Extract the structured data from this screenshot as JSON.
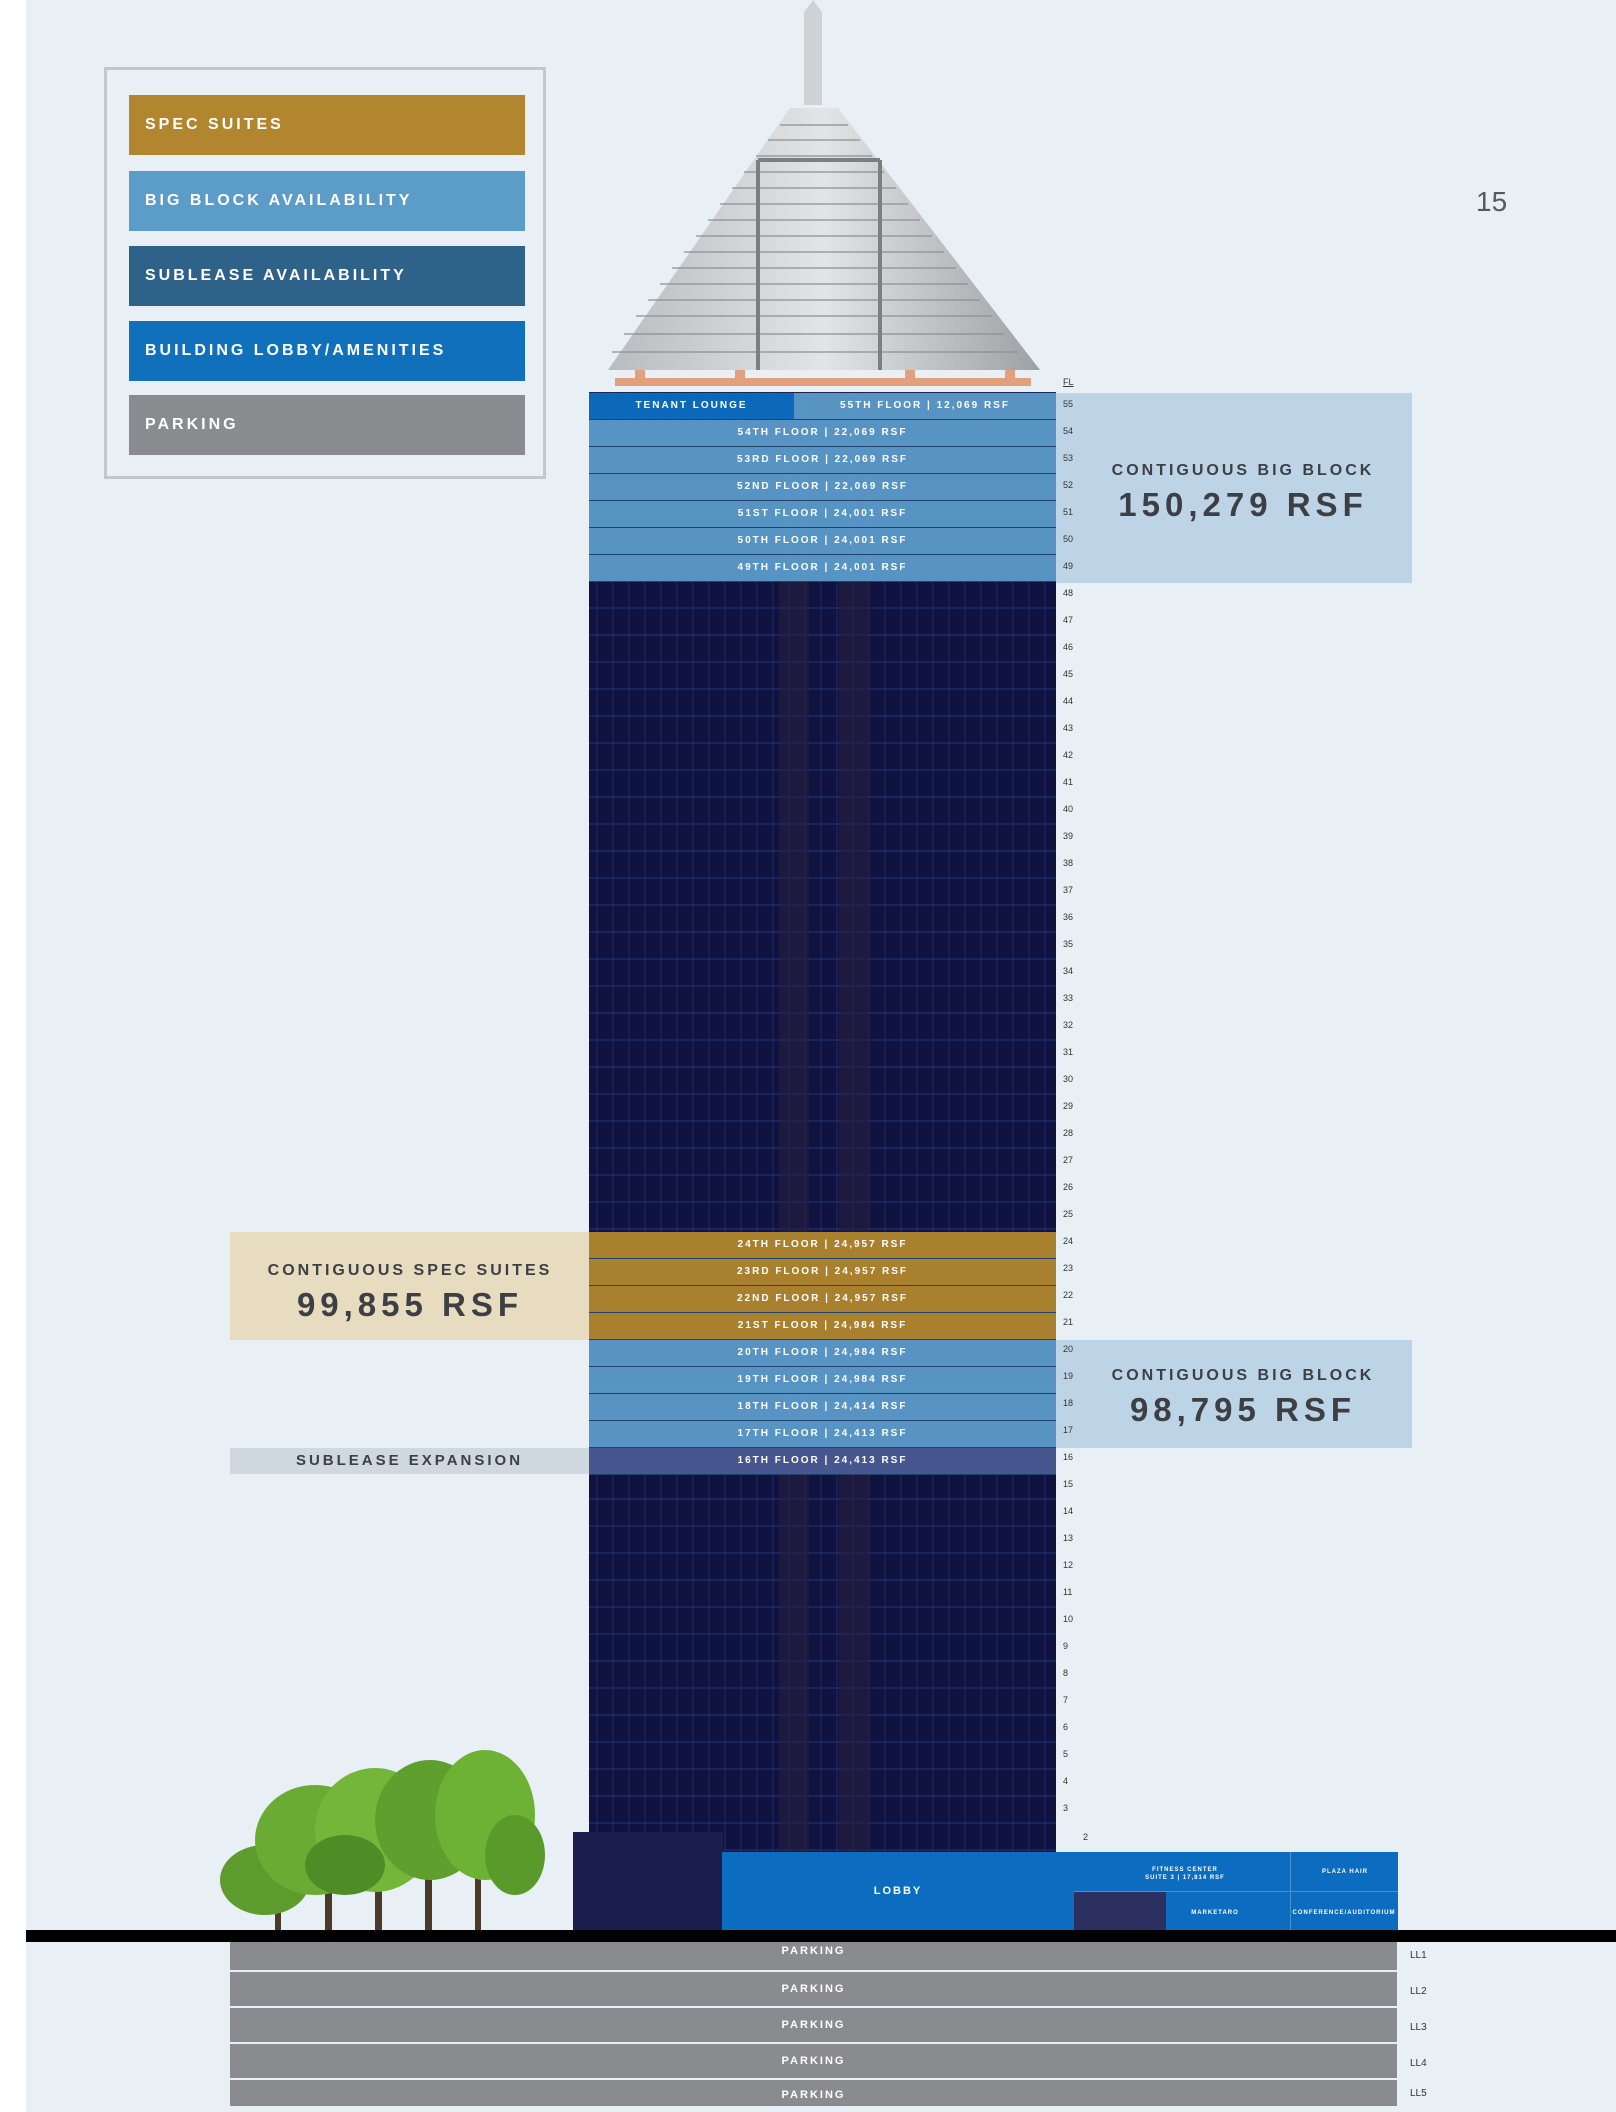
{
  "page_number": "15",
  "legend": [
    {
      "label": "SPEC SUITES",
      "color": "#b1862e"
    },
    {
      "label": "BIG BLOCK AVAILABILITY",
      "color": "#5c9cc8"
    },
    {
      "label": "SUBLEASE AVAILABILITY",
      "color": "#2f6289"
    },
    {
      "label": "BUILDING LOBBY/AMENITIES",
      "color": "#1070bb"
    },
    {
      "label": "PARKING",
      "color": "#8a8b8e"
    }
  ],
  "fl_header": "FL",
  "floor_numbers": [
    "55",
    "54",
    "53",
    "52",
    "51",
    "50",
    "49",
    "48",
    "47",
    "46",
    "45",
    "44",
    "43",
    "42",
    "41",
    "40",
    "39",
    "38",
    "37",
    "36",
    "35",
    "34",
    "33",
    "32",
    "31",
    "30",
    "29",
    "28",
    "27",
    "26",
    "25",
    "24",
    "23",
    "22",
    "21",
    "20",
    "19",
    "18",
    "17",
    "16",
    "15",
    "14",
    "13",
    "12",
    "11",
    "10",
    "9",
    "8",
    "7",
    "6",
    "5",
    "4",
    "3",
    "2"
  ],
  "tenant_lounge": "TENANT LOUNGE",
  "floors_top": [
    {
      "label": "55TH FLOOR | 12,069 RSF",
      "type": "big_block"
    },
    {
      "label": "54TH FLOOR | 22,069 RSF",
      "type": "big_block"
    },
    {
      "label": "53RD FLOOR | 22,069 RSF",
      "type": "big_block"
    },
    {
      "label": "52ND FLOOR | 22,069 RSF",
      "type": "big_block"
    },
    {
      "label": "51ST FLOOR | 24,001 RSF",
      "type": "big_block"
    },
    {
      "label": "50TH FLOOR | 24,001 RSF",
      "type": "big_block"
    },
    {
      "label": "49TH FLOOR | 24,001 RSF",
      "type": "big_block"
    }
  ],
  "floors_mid": [
    {
      "label": "24TH FLOOR | 24,957 RSF",
      "type": "spec"
    },
    {
      "label": "23RD FLOOR | 24,957 RSF",
      "type": "spec"
    },
    {
      "label": "22ND FLOOR | 24,957 RSF",
      "type": "spec"
    },
    {
      "label": "21ST FLOOR | 24,984 RSF",
      "type": "spec"
    },
    {
      "label": "20TH FLOOR | 24,984 RSF",
      "type": "big_block"
    },
    {
      "label": "19TH FLOOR | 24,984 RSF",
      "type": "big_block"
    },
    {
      "label": "18TH FLOOR | 24,414 RSF",
      "type": "big_block"
    },
    {
      "label": "17TH FLOOR | 24,413 RSF",
      "type": "big_block"
    },
    {
      "label": "16TH FLOOR | 24,413 RSF",
      "type": "sublease"
    }
  ],
  "callouts": {
    "top_block": {
      "caption": "CONTIGUOUS BIG BLOCK",
      "value": "150,279 RSF"
    },
    "spec_suites": {
      "caption": "CONTIGUOUS SPEC SUITES",
      "value": "99,855 RSF"
    },
    "mid_block": {
      "caption": "CONTIGUOUS BIG BLOCK",
      "value": "98,795 RSF"
    },
    "sublease": {
      "caption": "SUBLEASE EXPANSION"
    }
  },
  "podium": {
    "lobby": "LOBBY",
    "fitness_center": "FITNESS CENTER",
    "fitness_suite": "SUITE 3 | 17,814 RSF",
    "plaza_hair": "PLAZA HAIR",
    "marketaro": "MARKETARO",
    "conference": "CONFERENCE/AUDITORIUM"
  },
  "parking": [
    {
      "label": "PARKING",
      "level": "LL1"
    },
    {
      "label": "PARKING",
      "level": "LL2"
    },
    {
      "label": "PARKING",
      "level": "LL3"
    },
    {
      "label": "PARKING",
      "level": "LL4"
    },
    {
      "label": "PARKING",
      "level": "LL5"
    }
  ],
  "colors": {
    "spec": "#b1862e",
    "big_block": "#5b9bcb",
    "sublease": "#4a5a94",
    "lobby": "#0c6dc0",
    "tower": "#10123f",
    "callout_blue": "#bdd4e7",
    "callout_tan": "#e7dbc0",
    "callout_gray": "#cfd7e1"
  }
}
